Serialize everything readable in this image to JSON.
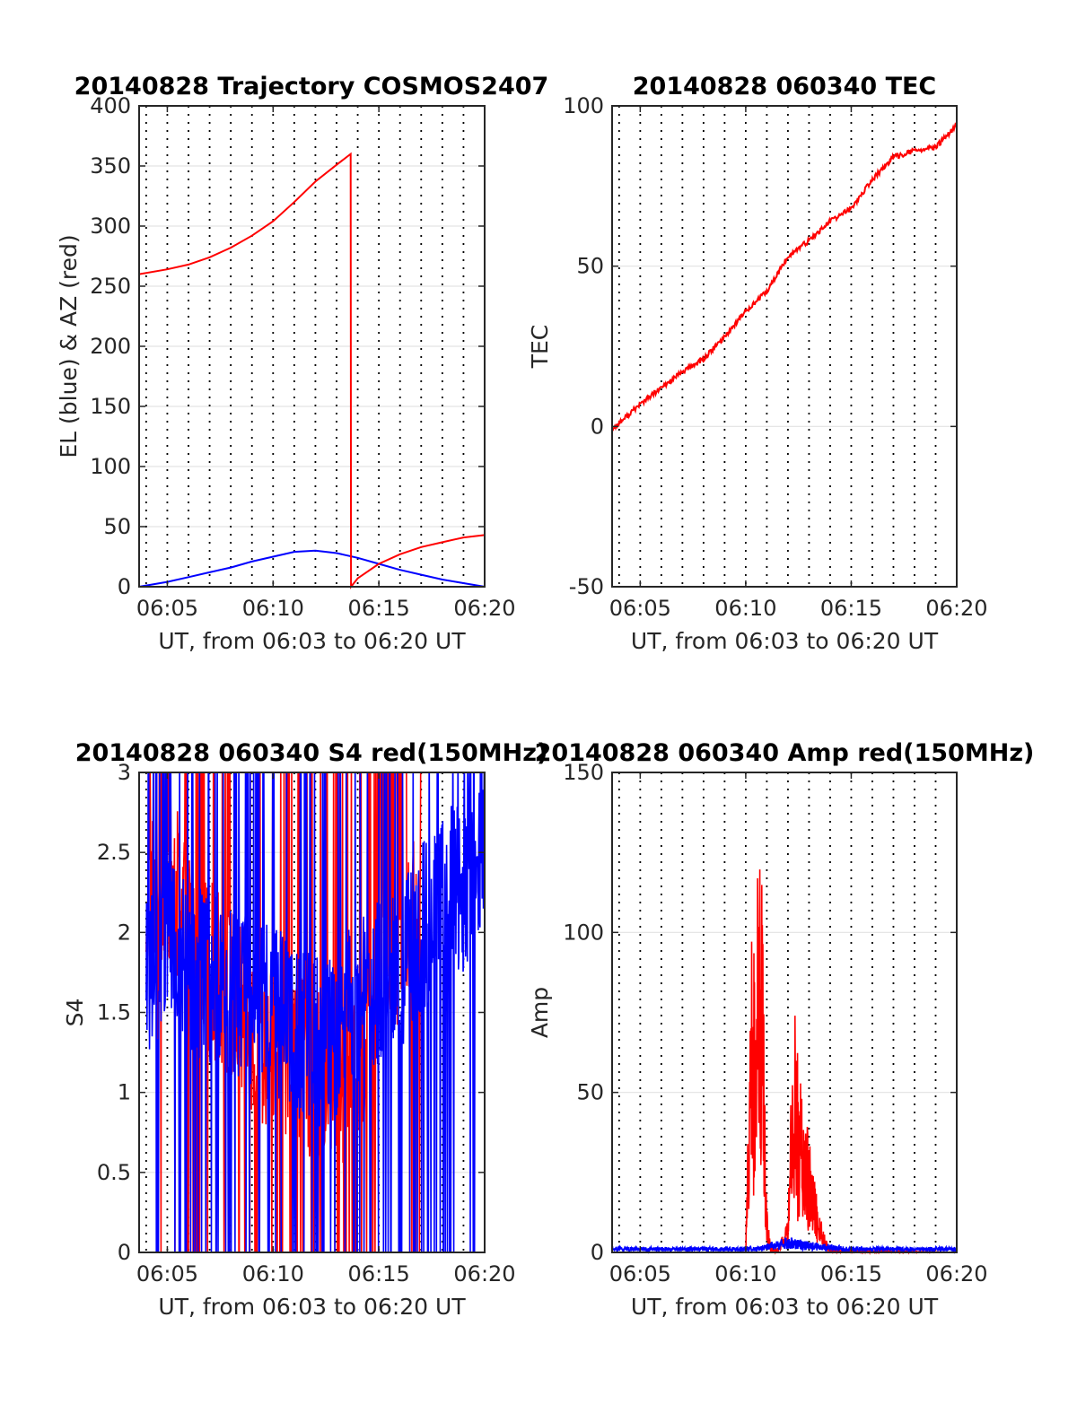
{
  "chart_data": [
    {
      "type": "line",
      "title": "20140828 Trajectory COSMOS2407",
      "xlabel": "UT, from 06:03 to 06:20 UT",
      "ylabel": "EL (blue) & AZ (red)",
      "xlim": [
        "06:03:40",
        "06:20:00"
      ],
      "ylim": [
        0,
        400
      ],
      "x_ticks": [
        "06:05",
        "06:10",
        "06:15",
        "06:20"
      ],
      "y_ticks": [
        "0",
        "50",
        "100",
        "150",
        "200",
        "250",
        "300",
        "350",
        "400"
      ],
      "grid": true,
      "colors": {
        "EL": "#0000ff",
        "AZ": "#ff0000"
      },
      "series": [
        {
          "name": "EL",
          "color": "#0000ff",
          "x": [
            "06:03:40",
            "06:05:00",
            "06:06:00",
            "06:07:00",
            "06:08:00",
            "06:09:00",
            "06:10:00",
            "06:11:00",
            "06:12:00",
            "06:13:00",
            "06:14:00",
            "06:15:00",
            "06:16:00",
            "06:17:00",
            "06:18:00",
            "06:19:00",
            "06:20:00"
          ],
          "values": [
            0,
            4,
            8,
            12,
            16,
            21,
            25,
            29,
            30,
            28,
            24,
            19,
            14,
            10,
            6,
            3,
            0
          ]
        },
        {
          "name": "AZ",
          "color": "#ff0000",
          "x": [
            "06:03:40",
            "06:05:00",
            "06:06:00",
            "06:07:00",
            "06:08:00",
            "06:09:00",
            "06:10:00",
            "06:11:00",
            "06:12:00",
            "06:13:00",
            "06:13:40",
            "06:13:41",
            "06:14:00",
            "06:15:00",
            "06:16:00",
            "06:17:00",
            "06:18:00",
            "06:19:00",
            "06:20:00"
          ],
          "values": [
            260,
            264,
            268,
            274,
            282,
            292,
            304,
            320,
            337,
            351,
            360,
            0,
            7,
            19,
            27,
            33,
            37,
            41,
            43
          ]
        }
      ]
    },
    {
      "type": "line",
      "title": "20140828 060340 TEC",
      "xlabel": "UT, from 06:03 to 06:20 UT",
      "ylabel": "TEC",
      "xlim": [
        "06:03:40",
        "06:20:00"
      ],
      "ylim": [
        -50,
        100
      ],
      "x_ticks": [
        "06:05",
        "06:10",
        "06:15",
        "06:20"
      ],
      "y_ticks": [
        "-50",
        "0",
        "50",
        "100"
      ],
      "grid": true,
      "series": [
        {
          "color": "#ff0000",
          "x": [
            "06:03:40",
            "06:04:30",
            "06:05:00",
            "06:06:00",
            "06:07:00",
            "06:08:00",
            "06:09:00",
            "06:10:00",
            "06:11:00",
            "06:12:00",
            "06:13:00",
            "06:14:00",
            "06:15:00",
            "06:16:00",
            "06:17:00",
            "06:18:00",
            "06:19:00",
            "06:20:00"
          ],
          "values": [
            -1,
            4,
            7,
            12,
            17,
            21,
            28,
            36,
            42,
            53,
            58,
            64,
            68,
            77,
            84,
            86,
            87,
            94
          ]
        }
      ]
    },
    {
      "type": "line",
      "title": "20140828 060340 S4 red(150MHz)",
      "xlabel": "UT, from 06:03 to 06:20 UT",
      "ylabel": "S4",
      "xlim": [
        "06:03:40",
        "06:20:00"
      ],
      "ylim": [
        0,
        3
      ],
      "x_ticks": [
        "06:05",
        "06:10",
        "06:15",
        "06:20"
      ],
      "y_ticks": [
        "0",
        "0.5",
        "1",
        "1.5",
        "2",
        "2.5",
        "3"
      ],
      "grid": true,
      "series": [
        {
          "color": "#ff0000",
          "x": [
            "06:04",
            "06:05",
            "06:06",
            "06:07",
            "06:08",
            "06:09",
            "06:10",
            "06:11",
            "06:12",
            "06:13",
            "06:14",
            "06:15",
            "06:16",
            "06:17"
          ],
          "values": [
            2.2,
            2.4,
            2.0,
            1.8,
            1.6,
            1.4,
            1.3,
            1.2,
            1.1,
            1.0,
            1.2,
            1.5,
            1.8,
            2.2
          ]
        },
        {
          "color": "#0000ff",
          "x": [
            "06:04",
            "06:05",
            "06:06",
            "06:07",
            "06:08",
            "06:09",
            "06:10",
            "06:11",
            "06:12",
            "06:13",
            "06:14",
            "06:15",
            "06:16",
            "06:17",
            "06:18",
            "06:19",
            "06:20"
          ],
          "values": [
            1.8,
            1.9,
            1.8,
            1.7,
            1.6,
            1.6,
            1.5,
            1.4,
            1.3,
            1.4,
            1.6,
            1.7,
            1.8,
            2.0,
            2.2,
            2.3,
            2.4
          ]
        }
      ]
    },
    {
      "type": "line",
      "title": "20140828 060340 Amp red(150MHz)",
      "xlabel": "UT, from 06:03 to 06:20 UT",
      "ylabel": "Amp",
      "xlim": [
        "06:03:40",
        "06:20:00"
      ],
      "ylim": [
        0,
        150
      ],
      "x_ticks": [
        "06:05",
        "06:10",
        "06:15",
        "06:20"
      ],
      "y_ticks": [
        "0",
        "50",
        "100",
        "150"
      ],
      "grid": true,
      "series": [
        {
          "color": "#ff0000",
          "x": [
            "06:03:40",
            "06:10:00",
            "06:10:15",
            "06:10:30",
            "06:10:40",
            "06:10:50",
            "06:11:00",
            "06:11:10",
            "06:11:30",
            "06:12:00",
            "06:12:10",
            "06:12:20",
            "06:12:30",
            "06:12:40",
            "06:12:50",
            "06:13:00",
            "06:13:10",
            "06:13:20",
            "06:13:30",
            "06:13:45",
            "06:14:00",
            "06:20:00"
          ],
          "values": [
            0,
            0,
            100,
            120,
            127,
            110,
            15,
            2,
            1,
            10,
            55,
            74,
            60,
            50,
            44,
            35,
            28,
            20,
            12,
            6,
            1,
            0
          ]
        },
        {
          "color": "#0000ff",
          "x": [
            "06:03:40",
            "06:05:00",
            "06:07:00",
            "06:09:00",
            "06:10:30",
            "06:12:00",
            "06:13:00",
            "06:15:00",
            "06:17:00",
            "06:19:00",
            "06:20:00"
          ],
          "values": [
            1,
            1,
            1,
            1,
            1,
            3,
            2,
            1,
            1,
            1,
            1
          ]
        }
      ]
    }
  ]
}
